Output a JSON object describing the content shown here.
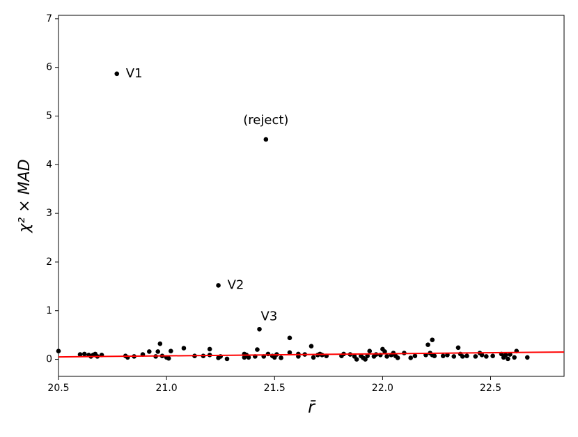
{
  "chart_data": {
    "type": "scatter",
    "x_label": "r̄",
    "y_label": "χ² × MAD",
    "xlim": [
      20.5,
      22.84
    ],
    "ylim": [
      -0.35,
      7.07
    ],
    "xticks": [
      20.5,
      {
        "value": 21,
        "label": "21.0"
      },
      21.5,
      {
        "value": 22,
        "label": "22.0"
      },
      22.5
    ],
    "yticks": [
      0,
      1,
      2,
      3,
      4,
      5,
      6,
      7
    ],
    "color": "#000000",
    "x": [
      20.5,
      20.6,
      20.62,
      20.64,
      20.65,
      20.66,
      20.67,
      20.68,
      20.7,
      20.81,
      20.82,
      20.85,
      20.89,
      20.92,
      20.95,
      20.96,
      20.97,
      20.98,
      21.0,
      21.02,
      21.01,
      21.08,
      21.13,
      21.17,
      21.2,
      21.2,
      21.24,
      21.25,
      21.28,
      21.36,
      21.36,
      21.37,
      21.38,
      21.41,
      21.42,
      21.45,
      21.47,
      21.49,
      21.5,
      21.51,
      21.53,
      21.57,
      21.57,
      21.61,
      21.61,
      21.64,
      21.67,
      21.68,
      21.7,
      21.71,
      21.72,
      21.74,
      21.81,
      21.82,
      21.85,
      21.87,
      21.88,
      21.9,
      21.91,
      21.92,
      21.93,
      21.94,
      21.96,
      21.97,
      21.99,
      22.0,
      22.01,
      22.02,
      22.04,
      22.05,
      22.06,
      22.07,
      22.1,
      22.13,
      22.15,
      22.2,
      22.21,
      22.22,
      22.23,
      22.23,
      22.24,
      22.28,
      22.3,
      22.33,
      22.35,
      22.36,
      22.37,
      22.39,
      22.43,
      22.45,
      22.46,
      22.48,
      22.51,
      22.55,
      22.56,
      22.57,
      22.58,
      22.59,
      22.61,
      22.62,
      22.67
    ],
    "values": [
      0.17,
      0.1,
      0.11,
      0.09,
      0.06,
      0.09,
      0.11,
      0.06,
      0.09,
      0.07,
      0.04,
      0.06,
      0.1,
      0.16,
      0.06,
      0.16,
      0.32,
      0.07,
      0.04,
      0.17,
      0.02,
      0.23,
      0.07,
      0.07,
      0.09,
      0.21,
      0.03,
      0.06,
      0.01,
      0.11,
      0.04,
      0.09,
      0.04,
      0.06,
      0.2,
      0.06,
      0.11,
      0.07,
      0.04,
      0.1,
      0.03,
      0.44,
      0.14,
      0.11,
      0.06,
      0.1,
      0.27,
      0.04,
      0.09,
      0.11,
      0.09,
      0.07,
      0.07,
      0.11,
      0.1,
      0.06,
      0.0,
      0.07,
      0.03,
      0.0,
      0.07,
      0.17,
      0.06,
      0.1,
      0.09,
      0.21,
      0.16,
      0.06,
      0.09,
      0.13,
      0.07,
      0.03,
      0.13,
      0.03,
      0.07,
      0.09,
      0.3,
      0.13,
      0.4,
      0.09,
      0.07,
      0.07,
      0.09,
      0.06,
      0.24,
      0.11,
      0.06,
      0.07,
      0.06,
      0.13,
      0.09,
      0.06,
      0.07,
      0.11,
      0.04,
      0.09,
      0.01,
      0.1,
      0.04,
      0.17,
      0.04
    ],
    "annotations": [
      {
        "text": "V1",
        "x": 20.77,
        "y": 5.87,
        "position": "right"
      },
      {
        "text": "(reject)",
        "x": 21.46,
        "y": 4.52,
        "position": "above"
      },
      {
        "text": "V2",
        "x": 21.24,
        "y": 1.52,
        "position": "right"
      },
      {
        "text": "V3",
        "x": 21.43,
        "y": 0.62,
        "position": "above-right"
      }
    ],
    "fit_line": {
      "x": [
        20.5,
        22.84
      ],
      "values": [
        0.05,
        0.15
      ],
      "color": "#ff0000"
    }
  }
}
